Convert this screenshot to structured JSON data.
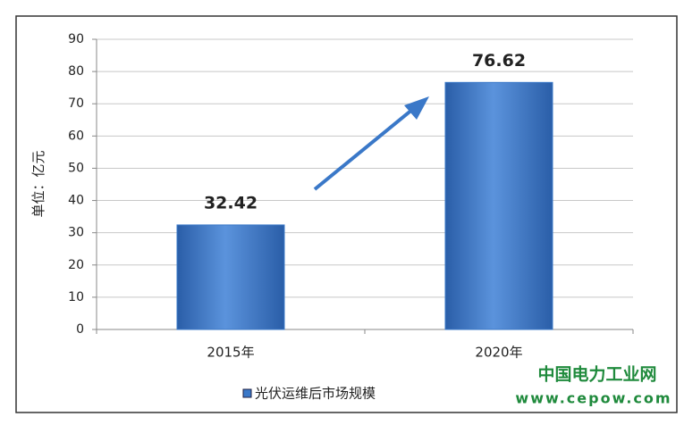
{
  "chart_data": {
    "type": "bar",
    "y_label": "单位：亿元",
    "categories": [
      "2015年",
      "2020年"
    ],
    "series": [
      {
        "name": "光伏运维后市场规模",
        "color": "#3a78c8",
        "values": [
          32.42,
          76.62
        ]
      }
    ],
    "ylim": [
      0,
      90
    ],
    "yticks": [
      0,
      10,
      20,
      30,
      40,
      50,
      60,
      70,
      80,
      90
    ],
    "grid": true,
    "legend": "bottom"
  },
  "watermark": [
    "中国电力工业网",
    "www.cepow.com"
  ]
}
